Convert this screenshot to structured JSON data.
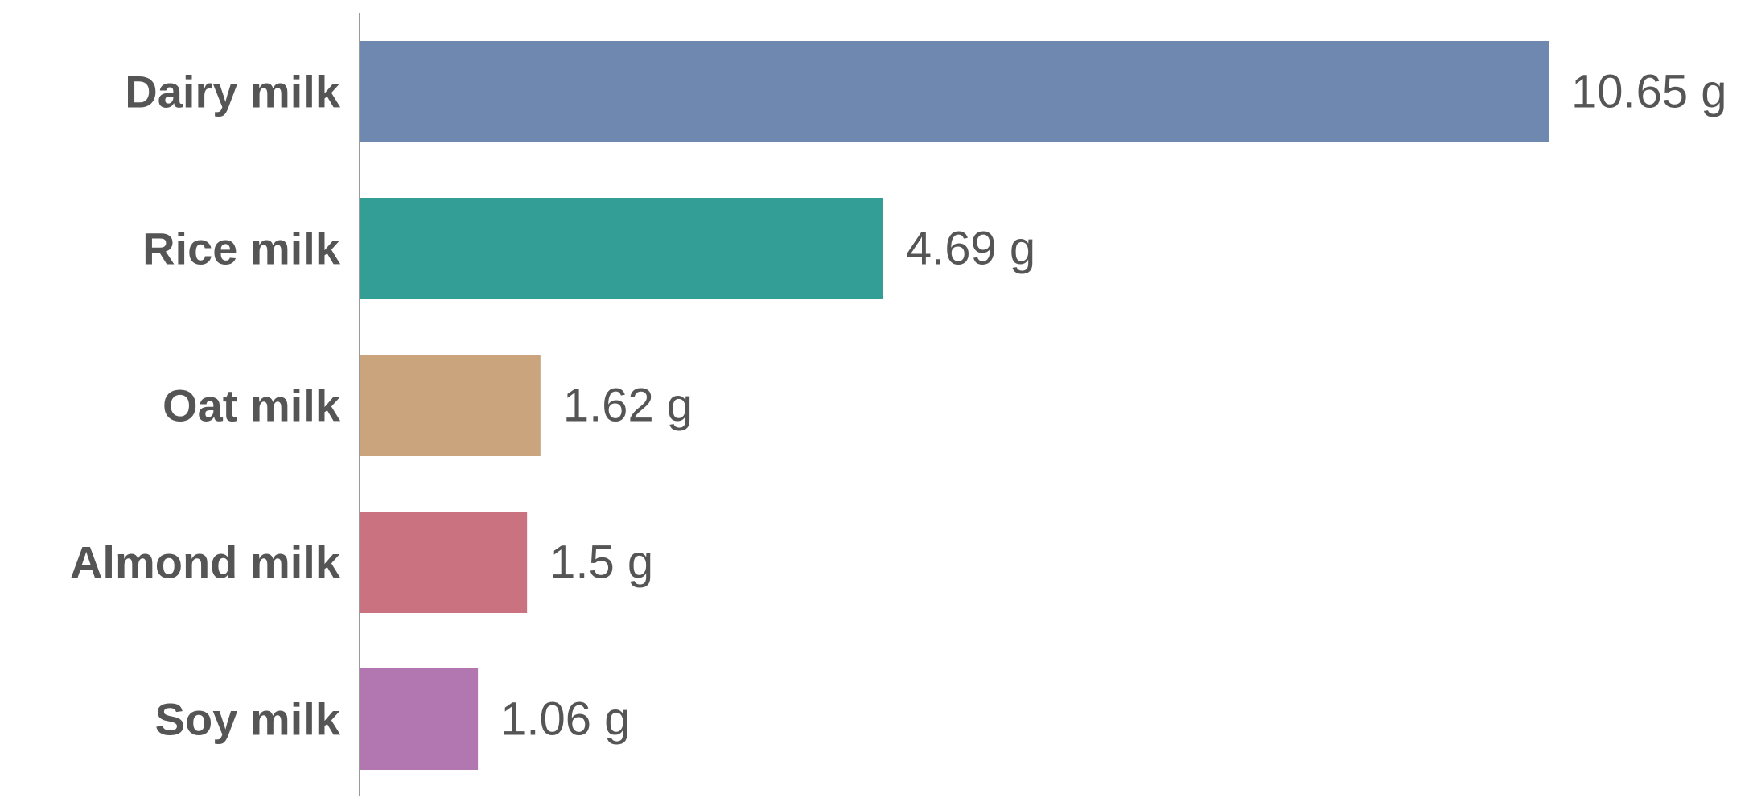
{
  "chart_data": {
    "type": "bar",
    "orientation": "horizontal",
    "categories": [
      "Dairy milk",
      "Rice milk",
      "Oat milk",
      "Almond milk",
      "Soy milk"
    ],
    "values": [
      10.65,
      4.69,
      1.62,
      1.5,
      1.06
    ],
    "value_labels": [
      "10.65 g",
      "4.69 g",
      "1.62 g",
      "1.5 g",
      "1.06 g"
    ],
    "unit": "g",
    "colors": [
      "#6e88b0",
      "#339e96",
      "#c9a47d",
      "#cb7280",
      "#b276b0"
    ],
    "axis_color": "#999999",
    "xlim": [
      0,
      10.65
    ],
    "grid": false,
    "legend": "none"
  }
}
